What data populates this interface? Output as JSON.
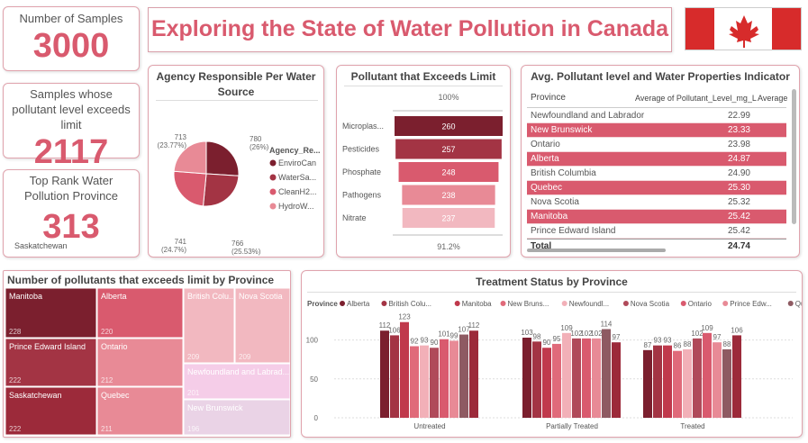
{
  "header": {
    "title": "Exploring the State of Water Pollution in Canada"
  },
  "kpis": {
    "samples": {
      "label": "Number of Samples",
      "value": "3000"
    },
    "exceeds": {
      "label": "Samples whose pollutant level exceeds limit",
      "value": "2117"
    },
    "top_rank": {
      "label": "Top Rank Water Pollution Province",
      "value": "313",
      "sub": "Saskatchewan"
    }
  },
  "colors": {
    "accent": "#d95a6e",
    "dark": "#7b1f2e",
    "mid": "#a33444",
    "light": "#e88a96",
    "pale": "#f2b8c0"
  },
  "pie": {
    "title": "Agency Responsible Per Water Source",
    "legend_title": "Agency_Re...",
    "chart_data": {
      "type": "pie",
      "categories": [
        "EnviroCan",
        "WaterSa...",
        "CleanH2...",
        "HydroW..."
      ],
      "values": [
        780,
        766,
        741,
        713
      ],
      "labels": [
        "780\n(26%)",
        "766\n(25.53%)",
        "741\n(24.7%)",
        "713\n(23.77%)"
      ],
      "colors": [
        "#7b1f2e",
        "#a33444",
        "#d95a6e",
        "#e88a96"
      ]
    }
  },
  "funnel": {
    "title": "Pollutant that Exceeds Limit",
    "top_pct": "100%",
    "bottom_pct": "91.2%",
    "chart_data": {
      "type": "bar",
      "categories": [
        "Microplas...",
        "Pesticides",
        "Phosphate",
        "Pathogens",
        "Nitrate"
      ],
      "values": [
        260,
        257,
        248,
        238,
        237
      ],
      "colors": [
        "#7b1f2e",
        "#a33444",
        "#d95a6e",
        "#e88a96",
        "#f2b8c0"
      ]
    }
  },
  "table": {
    "title": "Avg. Pollutant level and Water Properties Indicator",
    "headers": [
      "Province",
      "Average of Pollutant_Level_mg_L",
      "Average o"
    ],
    "rows": [
      {
        "province": "Newfoundland and Labrador",
        "value": "22.99"
      },
      {
        "province": "New Brunswick",
        "value": "23.33"
      },
      {
        "province": "Ontario",
        "value": "23.98"
      },
      {
        "province": "Alberta",
        "value": "24.87"
      },
      {
        "province": "British Columbia",
        "value": "24.90"
      },
      {
        "province": "Quebec",
        "value": "25.30"
      },
      {
        "province": "Nova Scotia",
        "value": "25.32"
      },
      {
        "province": "Manitoba",
        "value": "25.42"
      },
      {
        "province": "Prince Edward Island",
        "value": "25.42"
      }
    ],
    "total_label": "Total",
    "total_value": "24.74"
  },
  "treemap": {
    "title": "Number of pollutants that exceeds limit by Province",
    "chart_data": {
      "type": "heatmap",
      "categories": [
        "Manitoba",
        "Alberta",
        "Prince Edward Island",
        "Ontario",
        "Saskatchewan",
        "Quebec",
        "British Colu...",
        "Nova Scotia",
        "Newfoundland and Labrad...",
        "New Brunswick"
      ],
      "values": [
        228,
        220,
        222,
        212,
        222,
        211,
        209,
        209,
        201,
        196
      ]
    }
  },
  "grouped": {
    "title": "Treatment Status by Province",
    "legend_title": "Province",
    "chart_data": {
      "type": "bar",
      "categories": [
        "Untreated",
        "Partially Treated",
        "Treated"
      ],
      "ylim": [
        0,
        125
      ],
      "yticks": [
        0,
        50,
        100
      ],
      "series": [
        {
          "name": "Alberta",
          "values": [
            112,
            103,
            87
          ],
          "color": "#7b1f2e"
        },
        {
          "name": "British Colu...",
          "values": [
            106,
            98,
            93
          ],
          "color": "#a33444"
        },
        {
          "name": "Manitoba",
          "values": [
            123,
            90,
            93
          ],
          "color": "#c0394c"
        },
        {
          "name": "New Bruns...",
          "values": [
            92,
            95,
            86
          ],
          "color": "#e06a7a"
        },
        {
          "name": "Newfoundl...",
          "values": [
            93,
            109,
            88
          ],
          "color": "#f2b0b8"
        },
        {
          "name": "Nova Scotia",
          "values": [
            90,
            102,
            102
          ],
          "color": "#b04a5a"
        },
        {
          "name": "Ontario",
          "values": [
            101,
            102,
            109
          ],
          "color": "#d95a6e"
        },
        {
          "name": "Prince Edw...",
          "values": [
            99,
            102,
            97
          ],
          "color": "#e88a96"
        },
        {
          "name": "Quebec",
          "values": [
            107,
            114,
            88
          ],
          "color": "#8e5a62"
        },
        {
          "name": "Saskatche...",
          "values": [
            112,
            97,
            106
          ],
          "color": "#9c2a3a"
        }
      ]
    }
  }
}
